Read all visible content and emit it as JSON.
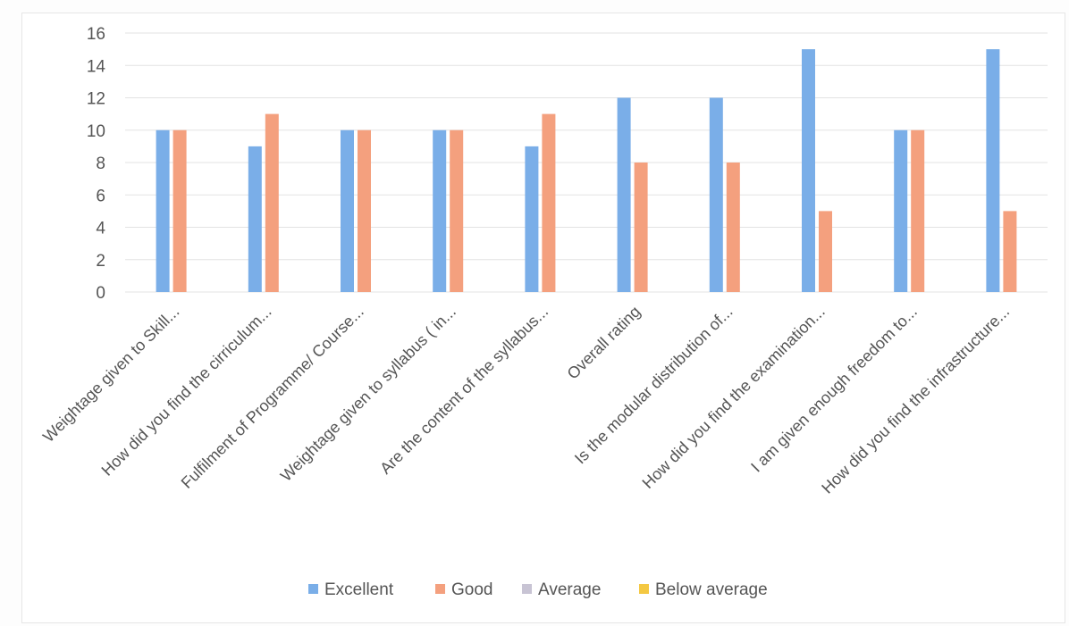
{
  "chart_data": {
    "type": "bar",
    "title": "",
    "xlabel": "",
    "ylabel": "",
    "ylim": [
      0,
      16
    ],
    "yticks": [
      0,
      2,
      4,
      6,
      8,
      10,
      12,
      14,
      16
    ],
    "grid": true,
    "legend_position": "bottom",
    "categories": [
      "Weightage given to Skill...",
      "How did you find the cirriculum...",
      "Fulfilment of Programme/ Course...",
      "Weightage given to syllabus ( in...",
      "Are the content of the syllabus...",
      "Overall rating",
      "Is the modular distribution of...",
      "How did you find the examination...",
      "I am given enough freedom to...",
      "How did you find the infrastructure..."
    ],
    "series": [
      {
        "name": "Excellent",
        "color": "#7aaee8",
        "values": [
          10,
          9,
          10,
          10,
          9,
          12,
          12,
          15,
          10,
          15
        ]
      },
      {
        "name": "Good",
        "color": "#f4a07e",
        "values": [
          10,
          11,
          10,
          10,
          11,
          8,
          8,
          5,
          10,
          5
        ]
      },
      {
        "name": "Average",
        "color": "#c8c4d4",
        "values": [
          0,
          0,
          0,
          0,
          0,
          0,
          0,
          0,
          0,
          0
        ]
      },
      {
        "name": "Below average",
        "color": "#f4c842",
        "values": [
          0,
          0,
          0,
          0,
          0,
          0,
          0,
          0,
          0,
          0
        ]
      }
    ]
  }
}
